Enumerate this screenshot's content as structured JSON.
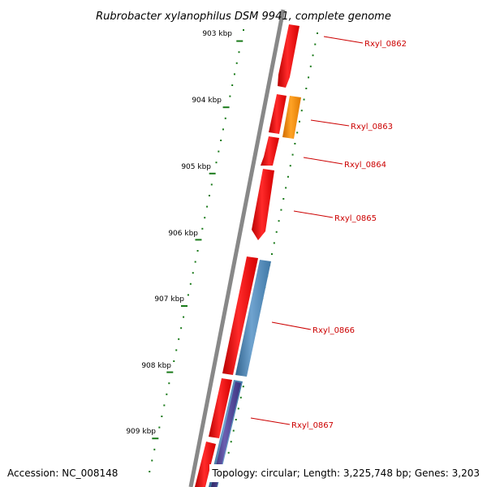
{
  "title": "Rubrobacter xylanophilus DSM 9941, complete genome",
  "footer": {
    "accession": "Accession: NC_008148",
    "topology": "Topology: circular; Length: 3,225,748 bp; Genes: 3,203"
  },
  "colors": {
    "backbone": "#888888",
    "cds": "#ff0000",
    "gene_orange": "#ff8c00",
    "rna_blue": "#4682b4",
    "rna_purple": "#483d8b",
    "tick": "#1a7a1a",
    "label": "#cc0000",
    "leader": "#cc0000",
    "text": "#000000"
  },
  "scale": {
    "ticks": [
      "903 kbp",
      "904 kbp",
      "905 kbp",
      "906 kbp",
      "907 kbp",
      "908 kbp",
      "909 kbp"
    ]
  },
  "genes": [
    {
      "name": "Rxyl_0862",
      "type": "cds"
    },
    {
      "name": "Rxyl_0863",
      "type": "gene_orange"
    },
    {
      "name": "Rxyl_0864",
      "type": "cds"
    },
    {
      "name": "Rxyl_0865",
      "type": "cds"
    },
    {
      "name": "Rxyl_0866",
      "type": "rna_blue"
    },
    {
      "name": "Rxyl_0867",
      "type": "rna_purple"
    }
  ]
}
